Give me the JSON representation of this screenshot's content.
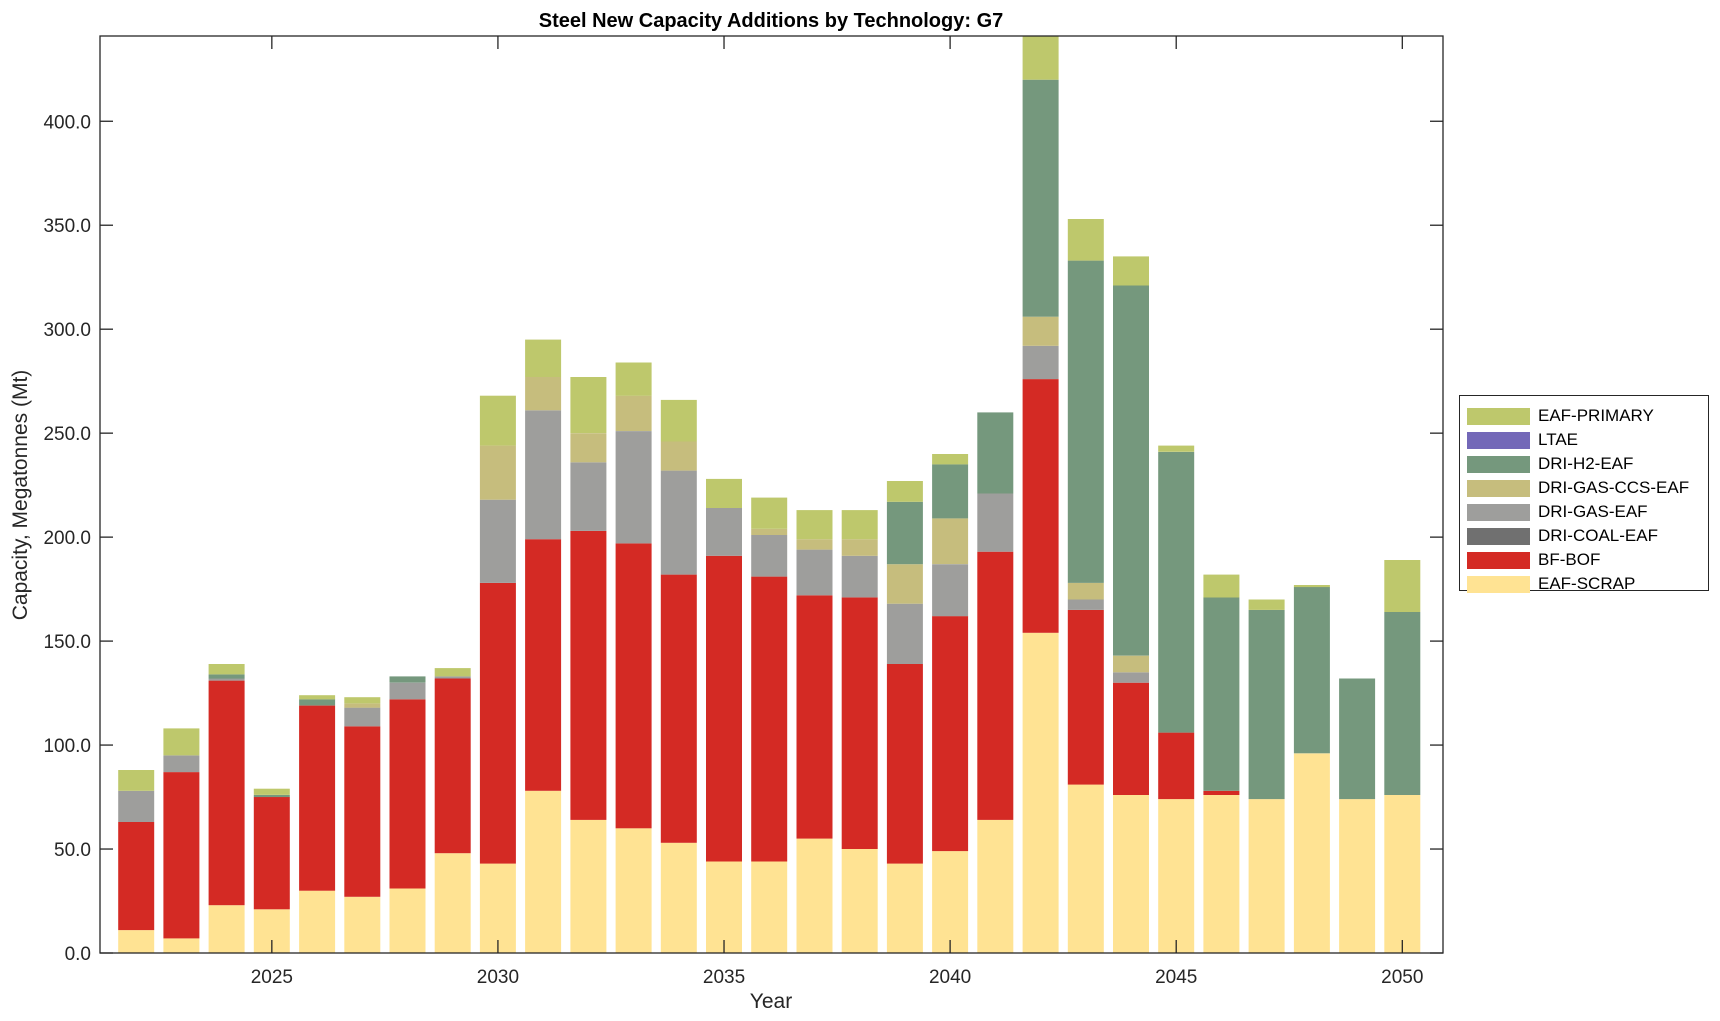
{
  "chart_data": {
    "type": "bar",
    "stacked": true,
    "title": "Steel New Capacity Additions by Technology: G7",
    "xlabel": "Year",
    "ylabel": "Capacity, Megatonnes (Mt)",
    "ylim": [
      0,
      441
    ],
    "xlim": [
      2021.2,
      2050.9
    ],
    "yticks": [
      "0.0",
      "50.0",
      "100.0",
      "150.0",
      "200.0",
      "250.0",
      "300.0",
      "350.0",
      "400.0"
    ],
    "ytick_values": [
      0,
      50,
      100,
      150,
      200,
      250,
      300,
      350,
      400
    ],
    "xticks": [
      "2025",
      "2030",
      "2035",
      "2040",
      "2045",
      "2050"
    ],
    "xtick_values": [
      2025,
      2030,
      2035,
      2040,
      2045,
      2050
    ],
    "legend_position": "right",
    "categories": [
      2022,
      2023,
      2024,
      2025,
      2026,
      2027,
      2028,
      2029,
      2030,
      2031,
      2032,
      2033,
      2034,
      2035,
      2036,
      2037,
      2038,
      2039,
      2040,
      2041,
      2042,
      2043,
      2044,
      2045,
      2046,
      2047,
      2048,
      2049,
      2050
    ],
    "series": [
      {
        "name": "EAF-SCRAP",
        "color": "#FFE393",
        "values": [
          11,
          7,
          23,
          21,
          30,
          27,
          31,
          48,
          43,
          78,
          64,
          60,
          53,
          44,
          44,
          55,
          50,
          43,
          49,
          64,
          154,
          81,
          76,
          74,
          76,
          74,
          96,
          74,
          76
        ]
      },
      {
        "name": "BF-BOF",
        "color": "#D42A24",
        "values": [
          52,
          80,
          108,
          54,
          89,
          82,
          91,
          84,
          135,
          121,
          139,
          137,
          129,
          147,
          137,
          117,
          121,
          96,
          113,
          129,
          122,
          84,
          54,
          32,
          2,
          0,
          0,
          0,
          0
        ]
      },
      {
        "name": "DRI-COAL-EAF",
        "color": "#707070",
        "values": [
          0,
          0,
          0,
          0,
          0,
          0,
          0,
          0,
          0,
          0,
          0,
          0,
          0,
          0,
          0,
          0,
          0,
          0,
          0,
          0,
          0,
          0,
          0,
          0,
          0,
          0,
          0,
          0,
          0
        ]
      },
      {
        "name": "DRI-GAS-EAF",
        "color": "#9E9E9C",
        "values": [
          15,
          8,
          1,
          0,
          0,
          9,
          8,
          1,
          40,
          62,
          33,
          54,
          50,
          23,
          20,
          22,
          20,
          29,
          25,
          28,
          16,
          5,
          5,
          0,
          0,
          0,
          0,
          0,
          0
        ]
      },
      {
        "name": "DRI-GAS-CCS-EAF",
        "color": "#C6BD7D",
        "values": [
          0,
          0,
          0,
          0,
          0,
          2,
          0,
          0,
          26,
          16,
          14,
          17,
          14,
          0,
          3,
          5,
          8,
          19,
          22,
          0,
          14,
          8,
          8,
          0,
          0,
          0,
          0,
          0,
          0
        ]
      },
      {
        "name": "DRI-H2-EAF",
        "color": "#75987D",
        "values": [
          0,
          0,
          2,
          1,
          3,
          0,
          3,
          0,
          0,
          0,
          0,
          0,
          0,
          0,
          0,
          0,
          0,
          30,
          26,
          39,
          114,
          155,
          178,
          135,
          93,
          91,
          80,
          58,
          88
        ]
      },
      {
        "name": "LTAE",
        "color": "#7368B8",
        "values": [
          0,
          0,
          0,
          0,
          0,
          0,
          0,
          0,
          0,
          0,
          0,
          0,
          0,
          0,
          0,
          0,
          0,
          0,
          0,
          0,
          0,
          0,
          0,
          0,
          0,
          0,
          0,
          0,
          0
        ]
      },
      {
        "name": "EAF-PRIMARY",
        "color": "#BEC86C",
        "values": [
          10,
          13,
          5,
          3,
          2,
          3,
          0,
          4,
          24,
          18,
          27,
          16,
          20,
          14,
          15,
          14,
          14,
          10,
          5,
          0,
          24,
          20,
          14,
          3,
          11,
          5,
          1,
          0,
          25
        ]
      }
    ],
    "legend_order": [
      "EAF-PRIMARY",
      "LTAE",
      "DRI-H2-EAF",
      "DRI-GAS-CCS-EAF",
      "DRI-GAS-EAF",
      "DRI-COAL-EAF",
      "BF-BOF",
      "EAF-SCRAP"
    ]
  }
}
